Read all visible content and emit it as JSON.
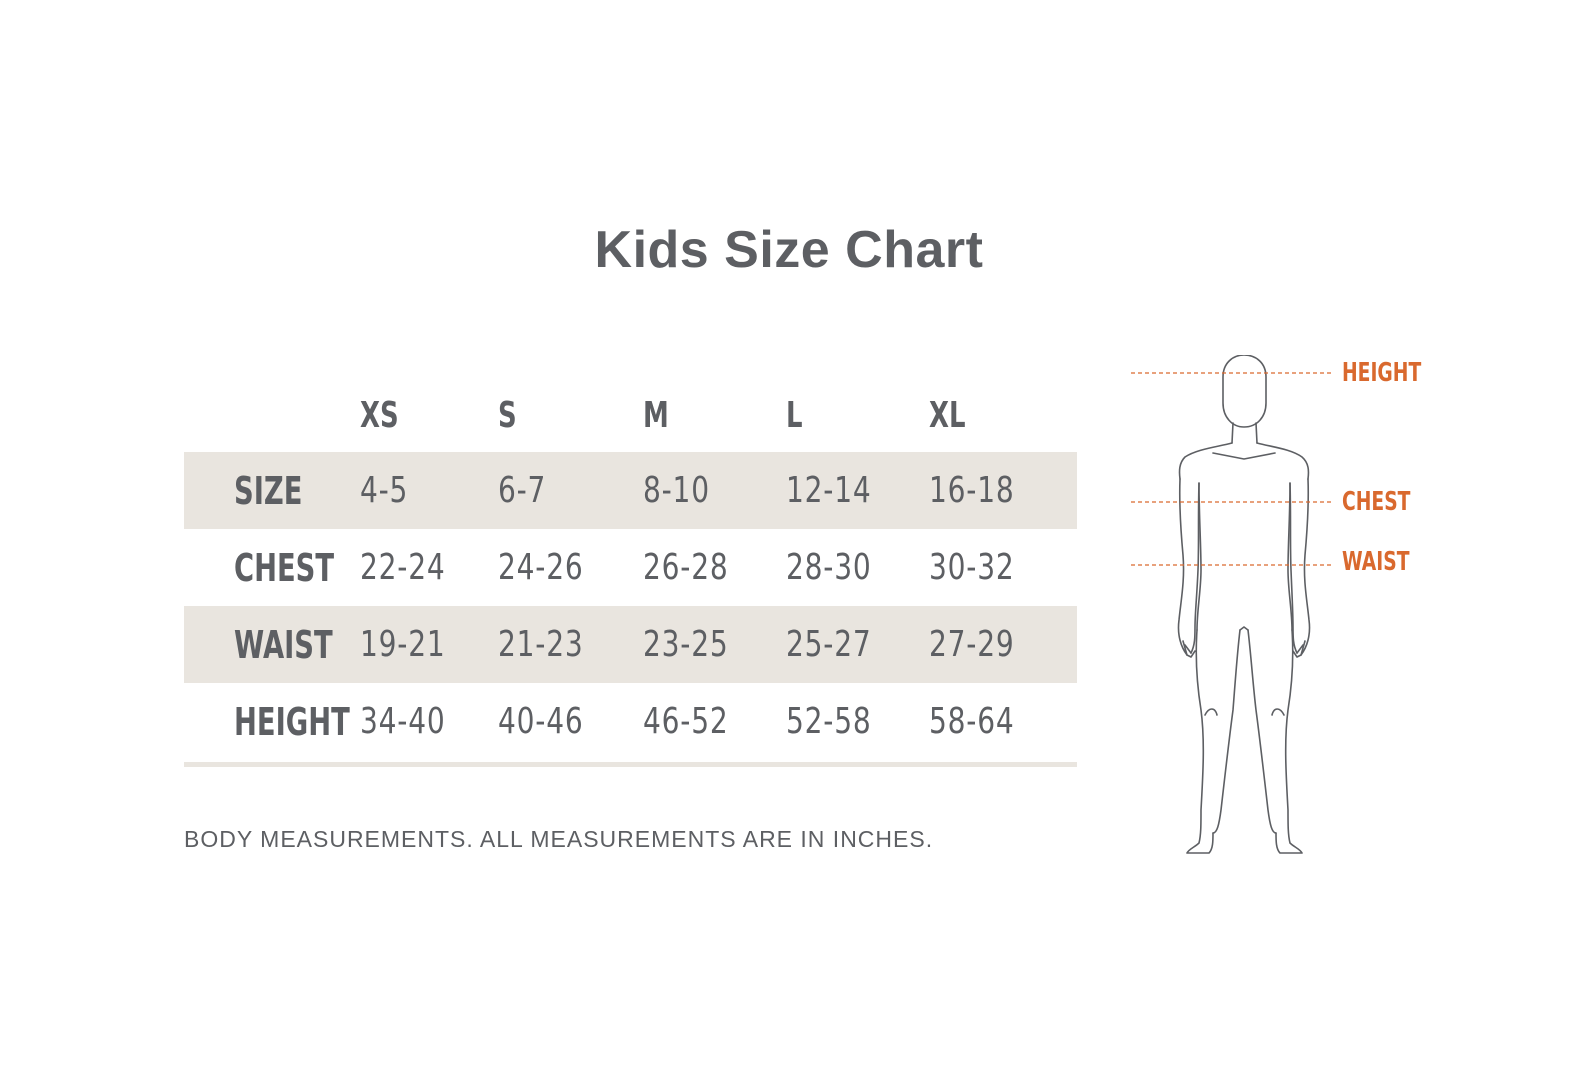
{
  "title": "Kids Size Chart",
  "columns": [
    "XS",
    "S",
    "M",
    "L",
    "XL"
  ],
  "rows": [
    {
      "label": "SIZE",
      "values": [
        "4-5",
        "6-7",
        "8-10",
        "12-14",
        "16-18"
      ]
    },
    {
      "label": "CHEST",
      "values": [
        "22-24",
        "24-26",
        "26-28",
        "28-30",
        "30-32"
      ]
    },
    {
      "label": "WAIST",
      "values": [
        "19-21",
        "21-23",
        "23-25",
        "25-27",
        "27-29"
      ]
    },
    {
      "label": "HEIGHT",
      "values": [
        "34-40",
        "40-46",
        "46-52",
        "52-58",
        "58-64"
      ]
    }
  ],
  "note": "BODY MEASUREMENTS. ALL MEASUREMENTS ARE IN INCHES.",
  "figure": {
    "labels": {
      "height": "HEIGHT",
      "chest": "CHEST",
      "waist": "WAIST"
    }
  },
  "colors": {
    "text": "#5d5f63",
    "shade": "#e9e5df",
    "accent": "#d9692e"
  }
}
